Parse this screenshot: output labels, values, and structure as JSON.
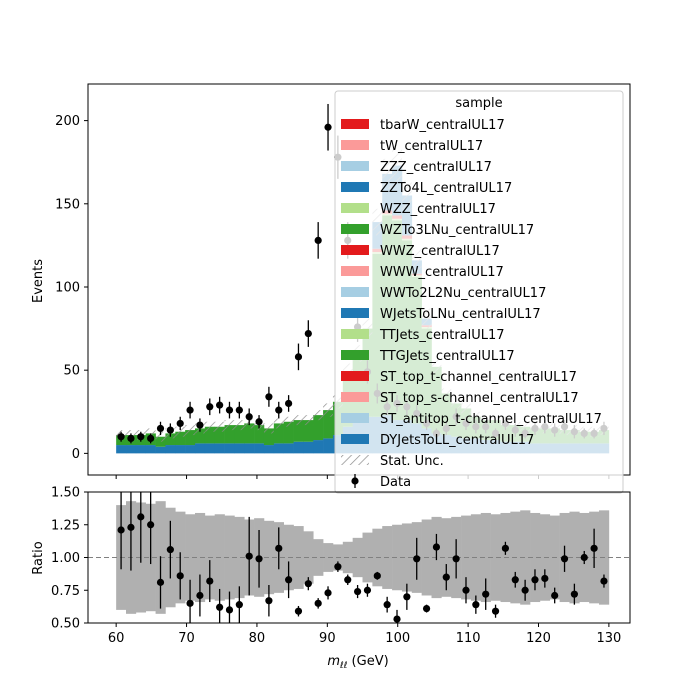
{
  "chart_data": {
    "type": "bar",
    "top_panel": {
      "ylabel": "Events",
      "xlim": [
        56,
        133
      ],
      "ylim": [
        -13,
        222
      ],
      "yticks": [
        0,
        50,
        100,
        150,
        200
      ],
      "bin_edges_start": 60,
      "bin_width": 1.4,
      "n_bins": 50,
      "series": [
        {
          "name": "DYJetsToLL_centralUL17",
          "color": "#1f78b4",
          "values": [
            5,
            5,
            5,
            5,
            4,
            5,
            5,
            5,
            6,
            6,
            6,
            6,
            6,
            6,
            6,
            5,
            6,
            6,
            7,
            7,
            8,
            9,
            11,
            16,
            20,
            22,
            22,
            23,
            20,
            20,
            18,
            15,
            12,
            11,
            10,
            9,
            9,
            8,
            8,
            7,
            7,
            7,
            6,
            6,
            6,
            6,
            6,
            6,
            6,
            6
          ]
        },
        {
          "name": "TTGJets_centralUL17",
          "color": "#33a02c",
          "values": [
            6,
            6,
            6,
            7,
            6,
            7,
            8,
            9,
            9,
            10,
            10,
            11,
            11,
            12,
            11,
            10,
            12,
            13,
            13,
            13,
            15,
            17,
            20,
            33,
            40,
            53,
            98,
            120,
            120,
            108,
            88,
            60,
            40,
            25,
            20,
            18,
            13,
            12,
            12,
            10,
            10,
            9,
            9,
            9,
            9,
            8,
            8,
            7,
            7,
            8
          ]
        },
        {
          "name": "TTJets_centralUL17",
          "color": "#b2df8a",
          "values": [
            0,
            0,
            0,
            0,
            0,
            0,
            0,
            0,
            0,
            0,
            0,
            0,
            0,
            0,
            0,
            0,
            0,
            0,
            0,
            0,
            0,
            0,
            0,
            0,
            0,
            0,
            1,
            1,
            1,
            1,
            1,
            1,
            0,
            0,
            0,
            0,
            0,
            0,
            0,
            0,
            0,
            0,
            0,
            0,
            0,
            0,
            0,
            0,
            0,
            0
          ]
        },
        {
          "name": "WZTo3LNu_centralUL17",
          "color": "#e31a1c",
          "values": [
            0,
            0,
            0,
            0,
            0,
            0,
            0,
            0,
            0,
            0,
            0,
            0,
            0,
            0,
            0,
            0,
            0,
            0,
            0,
            0,
            0,
            0,
            0,
            0,
            0,
            0,
            2,
            2,
            2,
            2,
            1,
            1,
            0,
            0,
            0,
            0,
            0,
            0,
            0,
            0,
            0,
            0,
            0,
            0,
            0,
            0,
            0,
            0,
            0,
            0
          ]
        },
        {
          "name": "ZZTo4L_centralUL17",
          "color": "#1f78b4",
          "values": [
            0,
            0,
            0,
            0,
            0,
            0,
            0,
            0,
            0,
            0,
            0,
            0,
            0,
            0,
            0,
            0,
            0,
            0,
            0,
            0,
            0,
            0,
            0,
            0,
            0,
            0,
            16,
            22,
            30,
            24,
            8,
            4,
            0,
            0,
            0,
            0,
            0,
            0,
            0,
            0,
            0,
            0,
            0,
            0,
            0,
            0,
            0,
            0,
            0,
            0
          ]
        }
      ],
      "stat_unc": [
        3,
        3,
        3,
        3,
        3,
        3,
        3,
        3,
        3,
        3,
        3,
        3,
        3,
        3,
        3,
        3,
        3,
        3,
        3,
        3,
        3,
        4,
        4,
        5,
        5,
        6,
        8,
        9,
        10,
        9,
        7,
        6,
        4,
        3,
        3,
        3,
        3,
        3,
        3,
        3,
        3,
        3,
        3,
        3,
        3,
        3,
        3,
        3,
        3,
        3
      ],
      "data": {
        "x": [
          60.7,
          62.1,
          63.5,
          64.9,
          66.3,
          67.7,
          69.1,
          70.5,
          71.9,
          73.3,
          74.7,
          76.1,
          77.5,
          78.9,
          80.3,
          81.7,
          83.1,
          84.5,
          85.9,
          87.3,
          88.7,
          90.1,
          91.5,
          92.9,
          94.3,
          95.7,
          97.1,
          98.5,
          99.9,
          101.3,
          102.7,
          104.1,
          105.5,
          106.9,
          108.3,
          109.7,
          111.1,
          112.5,
          113.9,
          115.3,
          116.7,
          118.1,
          119.5,
          120.9,
          122.3,
          123.7,
          125.1,
          126.5,
          127.9,
          129.3
        ],
        "y": [
          10,
          9,
          10,
          9,
          15,
          14,
          18,
          26,
          17,
          28,
          29,
          26,
          26,
          22,
          19,
          34,
          26,
          30,
          58,
          72,
          128,
          196,
          178,
          128,
          76,
          49,
          36,
          28,
          30,
          28,
          24,
          18,
          12,
          15,
          22,
          18,
          16,
          16,
          12,
          18,
          14,
          12,
          15,
          16,
          14,
          16,
          13,
          12,
          12,
          15
        ],
        "err": [
          3,
          3,
          3,
          3,
          4,
          4,
          4,
          5,
          4,
          5,
          5,
          5,
          5,
          5,
          4,
          6,
          5,
          5,
          8,
          8,
          11,
          14,
          13,
          11,
          9,
          7,
          6,
          5,
          5,
          5,
          5,
          4,
          3,
          4,
          5,
          4,
          4,
          4,
          3,
          4,
          4,
          3,
          4,
          4,
          4,
          4,
          4,
          3,
          3,
          4
        ]
      },
      "legend": {
        "title": "sample",
        "placement": "top-right",
        "entries": [
          {
            "label": "tbarW_centralUL17",
            "color": "#e31a1c",
            "kind": "box"
          },
          {
            "label": "tW_centralUL17",
            "color": "#fb9a99",
            "kind": "box"
          },
          {
            "label": "ZZZ_centralUL17",
            "color": "#a6cee3",
            "kind": "box"
          },
          {
            "label": "ZZTo4L_centralUL17",
            "color": "#1f78b4",
            "kind": "box"
          },
          {
            "label": "WZZ_centralUL17",
            "color": "#b2df8a",
            "kind": "box"
          },
          {
            "label": "WZTo3LNu_centralUL17",
            "color": "#33a02c",
            "kind": "box"
          },
          {
            "label": "WWZ_centralUL17",
            "color": "#e31a1c",
            "kind": "box"
          },
          {
            "label": "WWW_centralUL17",
            "color": "#fb9a99",
            "kind": "box"
          },
          {
            "label": "WWTo2L2Nu_centralUL17",
            "color": "#a6cee3",
            "kind": "box"
          },
          {
            "label": "WJetsToLNu_centralUL17",
            "color": "#1f78b4",
            "kind": "box"
          },
          {
            "label": "TTJets_centralUL17",
            "color": "#b2df8a",
            "kind": "box"
          },
          {
            "label": "TTGJets_centralUL17",
            "color": "#33a02c",
            "kind": "box"
          },
          {
            "label": "ST_top_t-channel_centralUL17",
            "color": "#e31a1c",
            "kind": "box"
          },
          {
            "label": "ST_top_s-channel_centralUL17",
            "color": "#fb9a99",
            "kind": "box"
          },
          {
            "label": "ST_antitop_t-channel_centralUL17",
            "color": "#a6cee3",
            "kind": "box"
          },
          {
            "label": "DYJetsToLL_centralUL17",
            "color": "#1f78b4",
            "kind": "box"
          },
          {
            "label": "Stat. Unc.",
            "color": "#808080",
            "kind": "hatch"
          },
          {
            "label": "Data",
            "color": "#000000",
            "kind": "marker"
          }
        ]
      }
    },
    "ratio_panel": {
      "ylabel": "Ratio",
      "xlabel": "m_{ℓℓ} (GeV)",
      "xlabel_main": "m",
      "xlabel_sub": "ℓℓ",
      "xlabel_unit": " (GeV)",
      "ylim": [
        0.5,
        1.5
      ],
      "yticks": [
        "0.50",
        "0.75",
        "1.00",
        "1.25",
        "1.50"
      ],
      "xticks": [
        60,
        70,
        80,
        90,
        100,
        110,
        120,
        130
      ],
      "reference_line": 1.0,
      "unc_half": [
        0.4,
        0.43,
        0.42,
        0.41,
        0.43,
        0.38,
        0.35,
        0.33,
        0.34,
        0.32,
        0.33,
        0.32,
        0.31,
        0.29,
        0.3,
        0.28,
        0.27,
        0.25,
        0.24,
        0.2,
        0.14,
        0.11,
        0.1,
        0.12,
        0.15,
        0.19,
        0.22,
        0.24,
        0.25,
        0.26,
        0.27,
        0.29,
        0.31,
        0.3,
        0.31,
        0.32,
        0.33,
        0.34,
        0.33,
        0.34,
        0.35,
        0.36,
        0.34,
        0.33,
        0.32,
        0.34,
        0.35,
        0.34,
        0.35,
        0.36
      ],
      "x": [
        60.7,
        62.1,
        63.5,
        64.9,
        66.3,
        67.7,
        69.1,
        70.5,
        71.9,
        73.3,
        74.7,
        76.1,
        77.5,
        78.9,
        80.3,
        81.7,
        83.1,
        84.5,
        85.9,
        87.3,
        88.7,
        90.1,
        91.5,
        92.9,
        94.3,
        95.7,
        97.1,
        98.5,
        99.9,
        101.3,
        102.7,
        104.1,
        105.5,
        106.9,
        108.3,
        109.7,
        111.1,
        112.5,
        113.9,
        115.3,
        116.7,
        118.1,
        119.5,
        120.9,
        122.3,
        123.7,
        125.1,
        126.5,
        127.9,
        129.3
      ],
      "y": [
        1.21,
        1.23,
        1.31,
        1.25,
        0.81,
        1.06,
        0.86,
        0.65,
        0.71,
        0.82,
        0.62,
        0.6,
        0.64,
        1.01,
        0.99,
        0.67,
        1.07,
        0.83,
        0.59,
        0.8,
        0.65,
        0.73,
        0.93,
        0.83,
        0.74,
        0.75,
        0.86,
        0.64,
        0.53,
        0.7,
        0.99,
        0.61,
        1.08,
        0.85,
        0.99,
        0.75,
        0.64,
        0.72,
        0.59,
        1.07,
        0.83,
        0.75,
        0.83,
        0.84,
        0.71,
        0.99,
        0.72,
        1.0,
        1.07,
        0.82
      ],
      "err": [
        0.3,
        0.33,
        0.35,
        0.3,
        0.2,
        0.22,
        0.18,
        0.18,
        0.16,
        0.16,
        0.14,
        0.14,
        0.14,
        0.3,
        0.22,
        0.12,
        0.16,
        0.14,
        0.04,
        0.05,
        0.04,
        0.05,
        0.04,
        0.04,
        0.05,
        0.05,
        0.03,
        0.06,
        0.07,
        0.1,
        0.16,
        0.03,
        0.1,
        0.1,
        0.15,
        0.1,
        0.07,
        0.12,
        0.05,
        0.05,
        0.06,
        0.08,
        0.08,
        0.07,
        0.06,
        0.1,
        0.08,
        0.05,
        0.15,
        0.05
      ]
    }
  }
}
